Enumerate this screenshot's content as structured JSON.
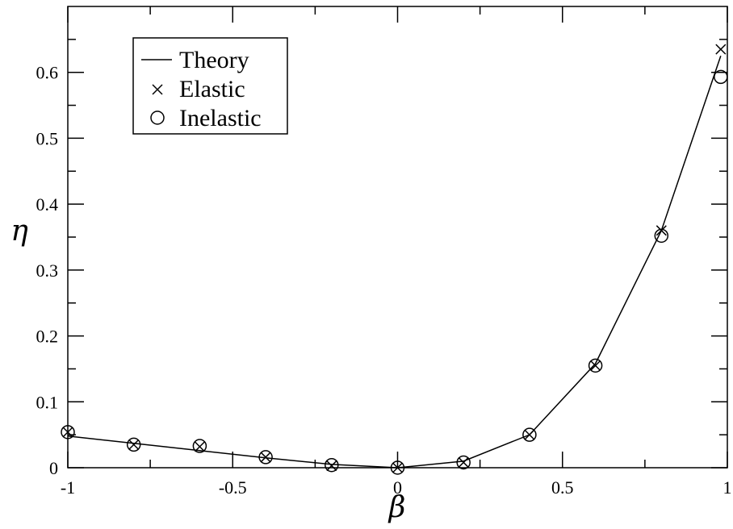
{
  "chart_data": {
    "type": "scatter",
    "xlabel": "β",
    "ylabel": "η",
    "xlim": [
      -1,
      1
    ],
    "ylim": [
      0,
      0.7
    ],
    "x_ticks": [
      {
        "value": -1,
        "label": "-1"
      },
      {
        "value": -0.5,
        "label": "-0.5"
      },
      {
        "value": 0,
        "label": "0"
      },
      {
        "value": 0.5,
        "label": "0.5"
      },
      {
        "value": 1,
        "label": "1"
      }
    ],
    "y_ticks": [
      {
        "value": 0,
        "label": "0"
      },
      {
        "value": 0.1,
        "label": "0.1"
      },
      {
        "value": 0.2,
        "label": "0.2"
      },
      {
        "value": 0.3,
        "label": "0.3"
      },
      {
        "value": 0.4,
        "label": "0.4"
      },
      {
        "value": 0.5,
        "label": "0.5"
      },
      {
        "value": 0.6,
        "label": "0.6"
      }
    ],
    "legend_position": "top-left",
    "series": [
      {
        "name": "Theory",
        "style": "line",
        "x": [
          -1,
          -0.8,
          -0.6,
          -0.4,
          -0.2,
          0,
          0.2,
          0.4,
          0.6,
          0.8,
          0.98
        ],
        "y": [
          0.048,
          0.037,
          0.026,
          0.015,
          0.005,
          0.0,
          0.01,
          0.05,
          0.158,
          0.36,
          0.625
        ]
      },
      {
        "name": "Elastic",
        "style": "x-marker",
        "x": [
          -1,
          -0.8,
          -0.6,
          -0.4,
          -0.2,
          0,
          0.2,
          0.4,
          0.6,
          0.8,
          0.98
        ],
        "y": [
          0.054,
          0.035,
          0.032,
          0.016,
          0.003,
          0.0,
          0.008,
          0.05,
          0.155,
          0.36,
          0.635
        ]
      },
      {
        "name": "Inelastic",
        "style": "circle-marker",
        "x": [
          -1,
          -0.8,
          -0.6,
          -0.4,
          -0.2,
          0,
          0.2,
          0.4,
          0.6,
          0.8,
          0.98
        ],
        "y": [
          0.054,
          0.035,
          0.033,
          0.016,
          0.004,
          0.0,
          0.008,
          0.05,
          0.155,
          0.352,
          0.593
        ]
      }
    ],
    "colors": {
      "line": "#000000",
      "background": "#ffffff"
    }
  }
}
